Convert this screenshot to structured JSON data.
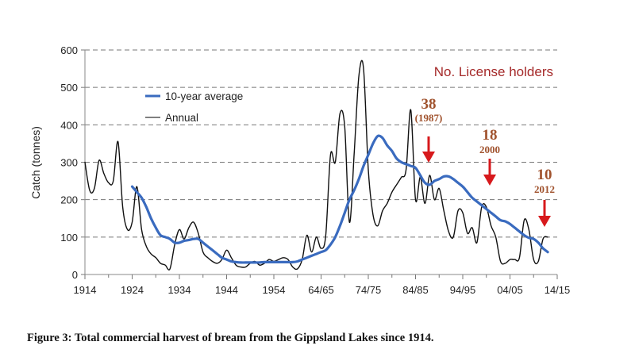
{
  "caption": "Figure 3: Total commercial harvest of bream from the Gippsland Lakes since 1914.",
  "chart_data": {
    "type": "line",
    "title": "",
    "xlabel": "",
    "ylabel": "Catch (tonnes)",
    "ylim": [
      0,
      600
    ],
    "xlim": [
      1914,
      2014
    ],
    "yticks": [
      0,
      100,
      200,
      300,
      400,
      500,
      600
    ],
    "xticks": [
      {
        "value": 1914,
        "label": "1914"
      },
      {
        "value": 1924,
        "label": "1924"
      },
      {
        "value": 1934,
        "label": "1934"
      },
      {
        "value": 1944,
        "label": "1944"
      },
      {
        "value": 1954,
        "label": "1954"
      },
      {
        "value": 1964,
        "label": "64/65"
      },
      {
        "value": 1974,
        "label": "74/75"
      },
      {
        "value": 1984,
        "label": "84/85"
      },
      {
        "value": 1994,
        "label": "94/95"
      },
      {
        "value": 2004,
        "label": "04/05"
      },
      {
        "value": 2014,
        "label": "14/15"
      }
    ],
    "grid": "horizontal-dashed",
    "legend": {
      "placement": "upper-left",
      "entries": [
        {
          "name": "10-year average",
          "color": "#3a6bbf"
        },
        {
          "name": "Annual",
          "color": "#111111"
        }
      ]
    },
    "series": [
      {
        "name": "Annual",
        "color": "#111111",
        "x": [
          1914,
          1915,
          1916,
          1917,
          1918,
          1919,
          1920,
          1921,
          1922,
          1923,
          1924,
          1925,
          1926,
          1927,
          1928,
          1929,
          1930,
          1931,
          1932,
          1933,
          1934,
          1935,
          1936,
          1937,
          1938,
          1939,
          1940,
          1941,
          1942,
          1943,
          1944,
          1945,
          1946,
          1947,
          1948,
          1949,
          1950,
          1951,
          1952,
          1953,
          1954,
          1955,
          1956,
          1957,
          1958,
          1959,
          1960,
          1961,
          1962,
          1963,
          1964,
          1965,
          1966,
          1967,
          1968,
          1969,
          1970,
          1971,
          1972,
          1973,
          1974,
          1975,
          1976,
          1977,
          1978,
          1979,
          1980,
          1981,
          1982,
          1983,
          1984,
          1985,
          1986,
          1987,
          1988,
          1989,
          1990,
          1991,
          1992,
          1993,
          1994,
          1995,
          1996,
          1997,
          1998,
          1999,
          2000,
          2001,
          2002,
          2003,
          2004,
          2005,
          2006,
          2007,
          2008,
          2009,
          2010,
          2011,
          2012
        ],
        "values": [
          300,
          225,
          230,
          305,
          270,
          245,
          250,
          355,
          180,
          120,
          140,
          235,
          120,
          75,
          55,
          45,
          30,
          25,
          15,
          80,
          120,
          95,
          125,
          140,
          110,
          60,
          45,
          35,
          30,
          40,
          65,
          45,
          25,
          20,
          20,
          30,
          35,
          25,
          30,
          40,
          35,
          40,
          45,
          40,
          20,
          15,
          40,
          105,
          60,
          100,
          70,
          105,
          320,
          300,
          430,
          395,
          140,
          320,
          530,
          550,
          280,
          160,
          130,
          170,
          190,
          220,
          240,
          260,
          280,
          440,
          200,
          260,
          190,
          265,
          200,
          230,
          170,
          115,
          100,
          170,
          165,
          110,
          125,
          85,
          180,
          180,
          130,
          100,
          35,
          30,
          40,
          40,
          45,
          145,
          120,
          40,
          35,
          95,
          100
        ]
      },
      {
        "name": "10-year average",
        "color": "#3a6bbf",
        "x": [
          1924,
          1925,
          1926,
          1927,
          1928,
          1929,
          1930,
          1931,
          1932,
          1933,
          1934,
          1935,
          1936,
          1937,
          1938,
          1939,
          1940,
          1941,
          1942,
          1943,
          1944,
          1945,
          1946,
          1947,
          1948,
          1949,
          1950,
          1951,
          1952,
          1953,
          1954,
          1955,
          1956,
          1957,
          1958,
          1959,
          1960,
          1961,
          1962,
          1963,
          1964,
          1965,
          1966,
          1967,
          1968,
          1969,
          1970,
          1971,
          1972,
          1973,
          1974,
          1975,
          1976,
          1977,
          1978,
          1979,
          1980,
          1981,
          1982,
          1983,
          1984,
          1985,
          1986,
          1987,
          1988,
          1989,
          1990,
          1991,
          1992,
          1993,
          1994,
          1995,
          1996,
          1997,
          1998,
          1999,
          2000,
          2001,
          2002,
          2003,
          2004,
          2005,
          2006,
          2007,
          2008,
          2009,
          2010,
          2011,
          2012
        ],
        "values": [
          235,
          220,
          205,
          180,
          150,
          125,
          105,
          100,
          95,
          85,
          85,
          90,
          92,
          95,
          95,
          85,
          75,
          65,
          55,
          45,
          40,
          35,
          33,
          32,
          32,
          32,
          32,
          32,
          33,
          33,
          33,
          33,
          33,
          33,
          33,
          35,
          40,
          45,
          50,
          55,
          60,
          65,
          80,
          100,
          130,
          165,
          200,
          225,
          255,
          290,
          320,
          350,
          370,
          365,
          345,
          330,
          310,
          300,
          295,
          290,
          285,
          265,
          245,
          240,
          250,
          255,
          262,
          262,
          255,
          245,
          235,
          220,
          205,
          195,
          185,
          175,
          165,
          155,
          145,
          142,
          135,
          125,
          115,
          105,
          98,
          95,
          85,
          70,
          60
        ]
      }
    ],
    "annotations": {
      "title": "No. License holders",
      "markers": [
        {
          "count": "38",
          "year_label": "(1987)",
          "year": 1987
        },
        {
          "count": "18",
          "year_label": "2000",
          "year": 2000
        },
        {
          "count": "10",
          "year_label": "2012",
          "year": 2012
        }
      ],
      "color": "#a52a2a",
      "arrow_color": "#d7191c"
    }
  }
}
